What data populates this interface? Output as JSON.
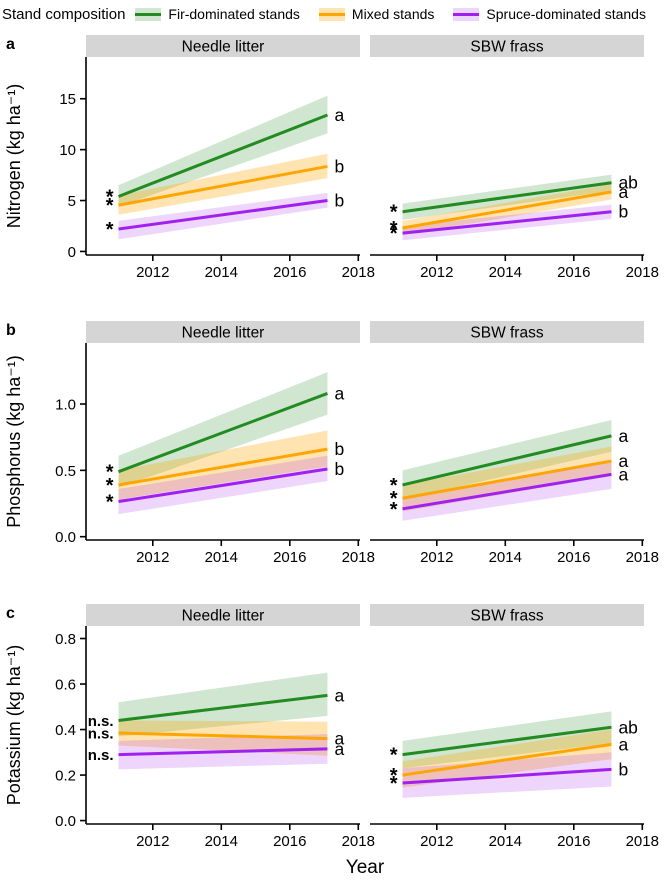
{
  "legend": {
    "title": "Stand composition",
    "entries": [
      {
        "label": "Fir-dominated stands",
        "line_color": "#228b22",
        "band_color": "rgba(34,139,34,0.21)"
      },
      {
        "label": "Mixed stands",
        "line_color": "#ffa500",
        "band_color": "rgba(255,165,0,0.30)"
      },
      {
        "label": "Spruce-dominated stands",
        "line_color": "#a020f0",
        "band_color": "rgba(160,32,240,0.19)"
      }
    ]
  },
  "x_axis": {
    "label": "Year",
    "ticks": [
      2012,
      2014,
      2016,
      2018
    ],
    "tick_labels": [
      "2012",
      "2014",
      "2016",
      "2018"
    ],
    "domain": [
      2010.05,
      2018.05
    ],
    "data_span": [
      2011,
      2017.1
    ]
  },
  "style": {
    "strip_fill": "#d5d5d5",
    "axis_color": "#000000"
  },
  "chart_data": [
    {
      "type": "line",
      "panel_letter": "a",
      "y_label": "Nitrogen (kg ha⁻¹)",
      "y_ticks": [
        0,
        5,
        10,
        15
      ],
      "y_tick_labels": [
        "0",
        "5",
        "10",
        "15"
      ],
      "ylim": [
        -0.35,
        19.1
      ],
      "panels": [
        {
          "strip": "Needle litter",
          "series": [
            {
              "name": "Fir-dominated stands",
              "sig": "*",
              "group_label": "a",
              "start": 5.4,
              "end": 13.4,
              "band_start": [
                4.4,
                6.5
              ],
              "band_end": [
                11.6,
                15.3
              ]
            },
            {
              "name": "Mixed stands",
              "sig": "*",
              "group_label": "b",
              "start": 4.55,
              "end": 8.35,
              "band_start": [
                3.6,
                5.5
              ],
              "band_end": [
                7.2,
                9.6
              ]
            },
            {
              "name": "Spruce-dominated stands",
              "sig": "*",
              "group_label": "b",
              "start": 2.2,
              "end": 5.0,
              "band_start": [
                1.2,
                3.0
              ],
              "band_end": [
                4.3,
                5.75
              ]
            }
          ]
        },
        {
          "strip": "SBW frass",
          "series": [
            {
              "name": "Fir-dominated stands",
              "sig": "*",
              "group_label": "ab",
              "start": 3.9,
              "end": 6.75,
              "band_start": [
                3.1,
                4.7
              ],
              "band_end": [
                5.95,
                7.55
              ]
            },
            {
              "name": "Mixed stands",
              "sig": "*",
              "group_label": "a",
              "start": 2.3,
              "end": 5.85,
              "band_start": [
                1.6,
                3.0
              ],
              "band_end": [
                5.1,
                6.6
              ]
            },
            {
              "name": "Spruce-dominated stands",
              "sig": "*",
              "group_label": "b",
              "start": 1.8,
              "end": 3.9,
              "band_start": [
                1.1,
                2.5
              ],
              "band_end": [
                3.2,
                4.6
              ]
            }
          ]
        }
      ]
    },
    {
      "type": "line",
      "panel_letter": "b",
      "y_label": "Phosphorus (kg ha⁻¹)",
      "y_ticks": [
        0.0,
        0.5,
        1.0
      ],
      "y_tick_labels": [
        "0.0",
        "0.5",
        "1.0"
      ],
      "ylim": [
        -0.025,
        1.46
      ],
      "panels": [
        {
          "strip": "Needle litter",
          "series": [
            {
              "name": "Fir-dominated stands",
              "sig": "*",
              "group_label": "a",
              "start": 0.49,
              "end": 1.08,
              "band_start": [
                0.37,
                0.61
              ],
              "band_end": [
                0.92,
                1.24
              ]
            },
            {
              "name": "Mixed stands",
              "sig": "*",
              "group_label": "b",
              "start": 0.39,
              "end": 0.66,
              "band_start": [
                0.28,
                0.5
              ],
              "band_end": [
                0.53,
                0.8
              ]
            },
            {
              "name": "Spruce-dominated stands",
              "sig": "*",
              "group_label": "b",
              "start": 0.265,
              "end": 0.51,
              "band_start": [
                0.17,
                0.36
              ],
              "band_end": [
                0.42,
                0.61
              ]
            }
          ]
        },
        {
          "strip": "SBW frass",
          "series": [
            {
              "name": "Fir-dominated stands",
              "sig": "*",
              "group_label": "a",
              "start": 0.39,
              "end": 0.76,
              "band_start": [
                0.28,
                0.5
              ],
              "band_end": [
                0.64,
                0.88
              ]
            },
            {
              "name": "Mixed stands",
              "sig": "*",
              "group_label": "a",
              "start": 0.29,
              "end": 0.57,
              "band_start": [
                0.19,
                0.39
              ],
              "band_end": [
                0.46,
                0.68
              ]
            },
            {
              "name": "Spruce-dominated stands",
              "sig": "*",
              "group_label": "a",
              "start": 0.21,
              "end": 0.47,
              "band_start": [
                0.12,
                0.3
              ],
              "band_end": [
                0.36,
                0.58
              ]
            }
          ]
        }
      ]
    },
    {
      "type": "line",
      "panel_letter": "c",
      "y_label": "Potassium (kg ha⁻¹)",
      "y_ticks": [
        0.0,
        0.2,
        0.4,
        0.6,
        0.8
      ],
      "y_tick_labels": [
        "0.0",
        "0.2",
        "0.4",
        "0.6",
        "0.8"
      ],
      "ylim": [
        -0.015,
        0.855
      ],
      "panels": [
        {
          "strip": "Needle litter",
          "series": [
            {
              "name": "Fir-dominated stands",
              "sig": "n.s.",
              "group_label": "a",
              "start": 0.44,
              "end": 0.55,
              "band_start": [
                0.37,
                0.52
              ],
              "band_end": [
                0.46,
                0.65
              ]
            },
            {
              "name": "Mixed stands",
              "sig": "n.s.",
              "group_label": "a",
              "start": 0.385,
              "end": 0.36,
              "band_start": [
                0.33,
                0.44
              ],
              "band_end": [
                0.285,
                0.435
              ]
            },
            {
              "name": "Spruce-dominated stands",
              "sig": "n.s.",
              "group_label": "a",
              "start": 0.29,
              "end": 0.315,
              "band_start": [
                0.225,
                0.35
              ],
              "band_end": [
                0.25,
                0.38
              ]
            }
          ]
        },
        {
          "strip": "SBW frass",
          "series": [
            {
              "name": "Fir-dominated stands",
              "sig": "*",
              "group_label": "ab",
              "start": 0.29,
              "end": 0.41,
              "band_start": [
                0.23,
                0.35
              ],
              "band_end": [
                0.34,
                0.48
              ]
            },
            {
              "name": "Mixed stands",
              "sig": "*",
              "group_label": "a",
              "start": 0.2,
              "end": 0.335,
              "band_start": [
                0.145,
                0.26
              ],
              "band_end": [
                0.27,
                0.4
              ]
            },
            {
              "name": "Spruce-dominated stands",
              "sig": "*",
              "group_label": "b",
              "start": 0.165,
              "end": 0.225,
              "band_start": [
                0.1,
                0.23
              ],
              "band_end": [
                0.15,
                0.3
              ]
            }
          ]
        }
      ]
    }
  ]
}
